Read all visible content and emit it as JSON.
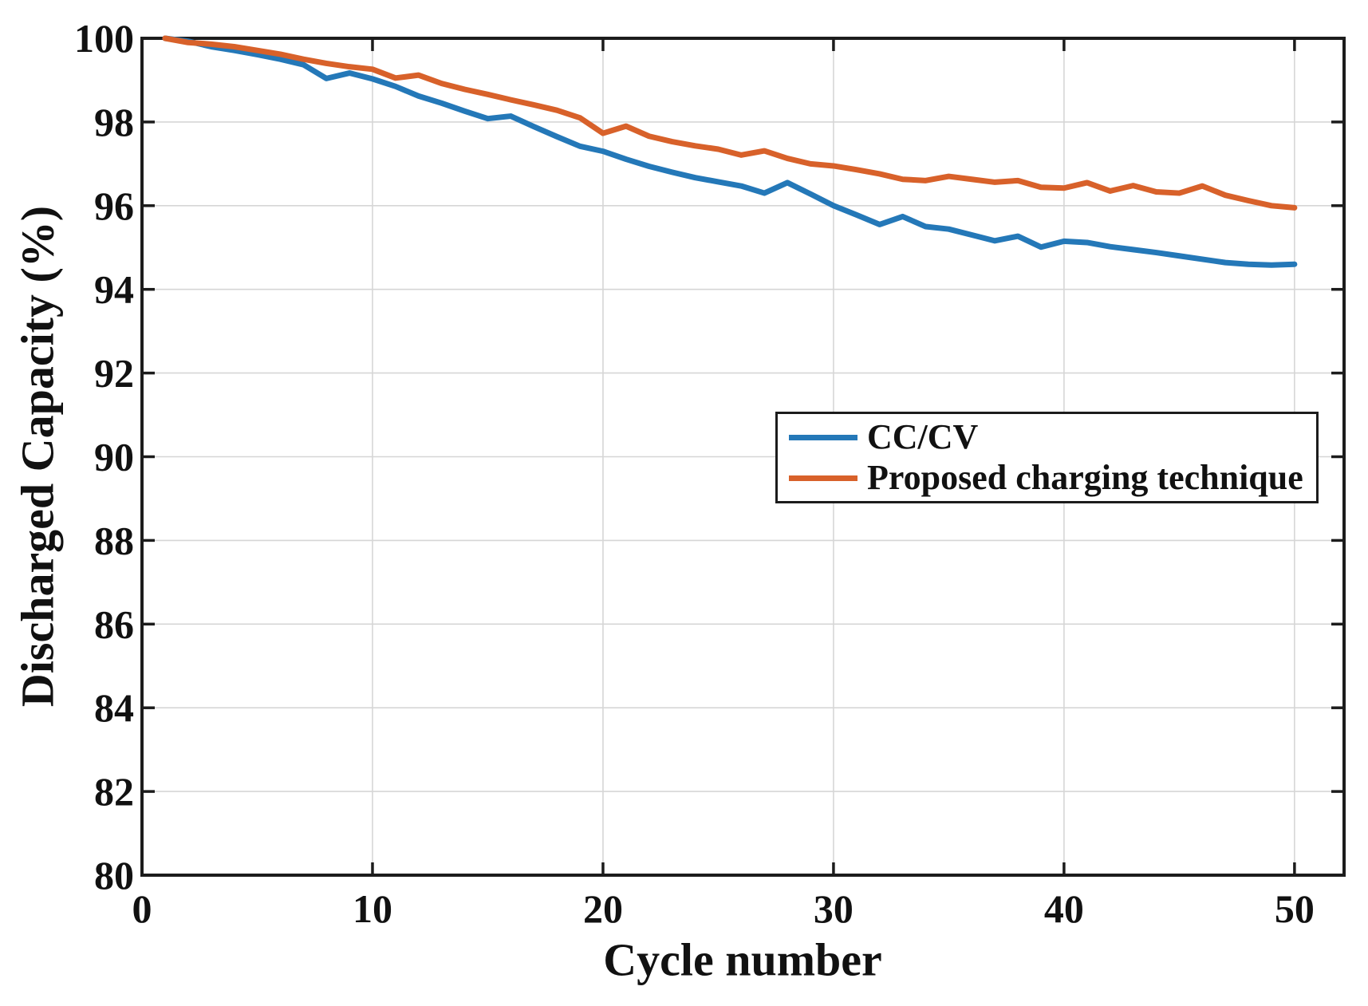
{
  "style": {
    "background": "#ffffff",
    "axis_color": "#1c1c1c",
    "grid_color": "#d6d6d6",
    "text_color": "#111111"
  },
  "chart_data": {
    "type": "line",
    "title": "",
    "xlabel": "Cycle number",
    "ylabel": "Discharged Capacity (%)",
    "xlim": [
      0,
      52.15
    ],
    "ylim": [
      80,
      100
    ],
    "x_ticks": [
      0,
      10,
      20,
      30,
      40,
      50
    ],
    "y_ticks": [
      80,
      82,
      84,
      86,
      88,
      90,
      92,
      94,
      96,
      98,
      100
    ],
    "grid": true,
    "legend_position": "center-right",
    "x": [
      1,
      2,
      3,
      4,
      5,
      6,
      7,
      8,
      9,
      10,
      11,
      12,
      13,
      14,
      15,
      16,
      17,
      18,
      19,
      20,
      21,
      22,
      23,
      24,
      25,
      26,
      27,
      28,
      29,
      30,
      31,
      32,
      33,
      34,
      35,
      36,
      37,
      38,
      39,
      40,
      41,
      42,
      43,
      44,
      45,
      46,
      47,
      48,
      49,
      50
    ],
    "series": [
      {
        "name": "CC/CV",
        "color": "#2478b8",
        "linewidth": 7,
        "values": [
          100.0,
          99.93,
          99.8,
          99.71,
          99.61,
          99.5,
          99.37,
          99.04,
          99.17,
          99.03,
          98.85,
          98.62,
          98.45,
          98.26,
          98.08,
          98.14,
          97.89,
          97.65,
          97.42,
          97.3,
          97.11,
          96.94,
          96.8,
          96.67,
          96.57,
          96.47,
          96.3,
          96.55,
          96.28,
          96.0,
          95.78,
          95.55,
          95.74,
          95.5,
          95.44,
          95.3,
          95.16,
          95.27,
          95.01,
          95.15,
          95.12,
          95.02,
          94.95,
          94.88,
          94.8,
          94.72,
          94.64,
          94.6,
          94.58,
          94.6
        ]
      },
      {
        "name": "Proposed charging technique",
        "color": "#d8612a",
        "linewidth": 7,
        "values": [
          100.0,
          99.9,
          99.86,
          99.8,
          99.71,
          99.62,
          99.5,
          99.4,
          99.32,
          99.26,
          99.05,
          99.12,
          98.92,
          98.78,
          98.66,
          98.53,
          98.41,
          98.28,
          98.1,
          97.73,
          97.9,
          97.66,
          97.53,
          97.43,
          97.35,
          97.21,
          97.31,
          97.13,
          97.0,
          96.95,
          96.86,
          96.76,
          96.63,
          96.6,
          96.7,
          96.63,
          96.56,
          96.6,
          96.44,
          96.42,
          96.55,
          96.35,
          96.48,
          96.33,
          96.3,
          96.47,
          96.25,
          96.12,
          96.0,
          95.95
        ]
      }
    ]
  }
}
